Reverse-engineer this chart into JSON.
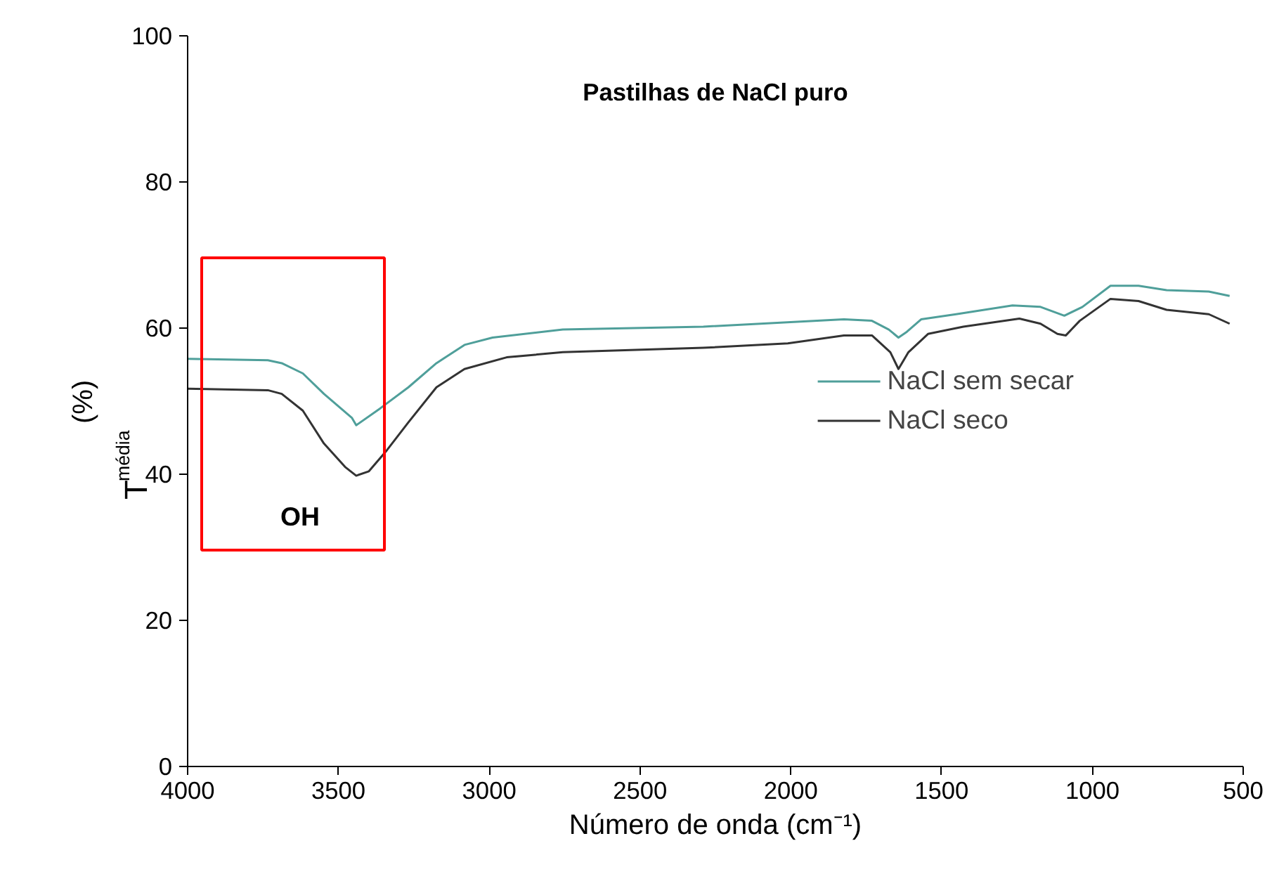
{
  "chart_data": {
    "type": "line",
    "title": "Pastilhas de NaCl puro",
    "xlabel": "Número de onda (cm⁻¹)",
    "ylabel": "T$_{média}$ (%)",
    "xlim": [
      4000,
      500
    ],
    "ylim": [
      0,
      100
    ],
    "xticks": [
      4000,
      3500,
      3000,
      2500,
      2000,
      1500,
      1000,
      500
    ],
    "yticks": [
      0,
      20,
      40,
      60,
      80,
      100
    ],
    "grid": false,
    "legend": "right",
    "marker": "none",
    "line_style": "solid",
    "annotations": [
      "OH"
    ],
    "series": [
      {
        "name": "NaCl sem secar",
        "color": "#4f9f9a",
        "x": [
          4000,
          3734,
          3688,
          3618,
          3548,
          3455,
          3441,
          3362,
          3268,
          3175,
          3082,
          2989,
          2756,
          2290,
          1824,
          1731,
          1675,
          1643,
          1615,
          1568,
          1452,
          1265,
          1172,
          1093,
          1033,
          940,
          847,
          754,
          614,
          545
        ],
        "values": [
          55.8,
          55.6,
          55.2,
          53.8,
          51.0,
          47.7,
          46.7,
          49.0,
          51.9,
          55.2,
          57.7,
          58.7,
          59.8,
          60.2,
          61.2,
          61.0,
          59.8,
          58.7,
          59.5,
          61.2,
          61.9,
          63.1,
          62.9,
          61.7,
          62.9,
          65.8,
          65.8,
          65.2,
          65.0,
          64.4
        ]
      },
      {
        "name": "NaCl seco",
        "color": "#333333",
        "x": [
          4000,
          3734,
          3688,
          3618,
          3548,
          3478,
          3441,
          3399,
          3339,
          3268,
          3175,
          3082,
          2942,
          2756,
          2290,
          2010,
          1824,
          1731,
          1670,
          1643,
          1610,
          1545,
          1428,
          1242,
          1172,
          1116,
          1088,
          1042,
          940,
          847,
          754,
          614,
          545
        ],
        "values": [
          51.7,
          51.5,
          51.0,
          48.7,
          44.2,
          41.0,
          39.8,
          40.4,
          43.3,
          47.1,
          51.9,
          54.4,
          56.0,
          56.7,
          57.3,
          57.9,
          59.0,
          59.0,
          56.7,
          54.4,
          56.7,
          59.2,
          60.2,
          61.3,
          60.6,
          59.2,
          59.0,
          61.0,
          64.0,
          63.7,
          62.5,
          61.9,
          60.6
        ]
      }
    ]
  }
}
